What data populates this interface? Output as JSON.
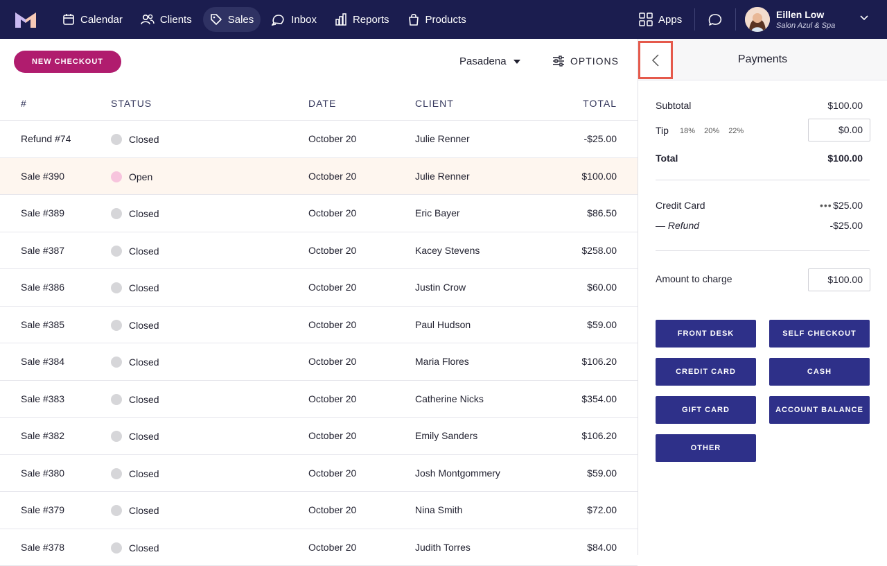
{
  "nav": {
    "items": [
      {
        "label": "Calendar",
        "icon": "calendar-icon"
      },
      {
        "label": "Clients",
        "icon": "users-icon"
      },
      {
        "label": "Sales",
        "icon": "tag-icon"
      },
      {
        "label": "Inbox",
        "icon": "inbox-icon"
      },
      {
        "label": "Reports",
        "icon": "bar-chart-icon"
      },
      {
        "label": "Products",
        "icon": "shopping-bag-icon"
      }
    ],
    "active": "Sales",
    "apps_label": "Apps",
    "user": {
      "name": "Eillen Low",
      "org": "Salon Azul & Spa"
    }
  },
  "toolbar": {
    "new_checkout": "NEW CHECKOUT",
    "location": "Pasadena",
    "options": "OPTIONS"
  },
  "table": {
    "headers": {
      "num": "#",
      "status": "STATUS",
      "date": "DATE",
      "client": "CLIENT",
      "total": "TOTAL"
    },
    "rows": [
      {
        "num": "Refund #74",
        "status": "Closed",
        "date": "October 20",
        "client": "Julie Renner",
        "total": "-$25.00"
      },
      {
        "num": "Sale #390",
        "status": "Open",
        "date": "October 20",
        "client": "Julie Renner",
        "total": "$100.00"
      },
      {
        "num": "Sale #389",
        "status": "Closed",
        "date": "October 20",
        "client": "Eric Bayer",
        "total": "$86.50"
      },
      {
        "num": "Sale #387",
        "status": "Closed",
        "date": "October 20",
        "client": "Kacey Stevens",
        "total": "$258.00"
      },
      {
        "num": "Sale #386",
        "status": "Closed",
        "date": "October 20",
        "client": "Justin Crow",
        "total": "$60.00"
      },
      {
        "num": "Sale #385",
        "status": "Closed",
        "date": "October 20",
        "client": "Paul Hudson",
        "total": "$59.00"
      },
      {
        "num": "Sale #384",
        "status": "Closed",
        "date": "October 20",
        "client": "Maria Flores",
        "total": "$106.20"
      },
      {
        "num": "Sale #383",
        "status": "Closed",
        "date": "October 20",
        "client": "Catherine Nicks",
        "total": "$354.00"
      },
      {
        "num": "Sale #382",
        "status": "Closed",
        "date": "October 20",
        "client": "Emily Sanders",
        "total": "$106.20"
      },
      {
        "num": "Sale #380",
        "status": "Closed",
        "date": "October 20",
        "client": "Josh Montgommery",
        "total": "$59.00"
      },
      {
        "num": "Sale #379",
        "status": "Closed",
        "date": "October 20",
        "client": "Nina Smith",
        "total": "$72.00"
      },
      {
        "num": "Sale #378",
        "status": "Closed",
        "date": "October 20",
        "client": "Judith Torres",
        "total": "$84.00"
      }
    ]
  },
  "payments": {
    "title": "Payments",
    "subtotal_label": "Subtotal",
    "subtotal_value": "$100.00",
    "tip_label": "Tip",
    "tip_options": [
      "18%",
      "20%",
      "22%"
    ],
    "tip_value": "$0.00",
    "total_label": "Total",
    "total_value": "$100.00",
    "credit_card_label": "Credit Card",
    "credit_card_value": "$25.00",
    "refund_label": "— Refund",
    "refund_value": "-$25.00",
    "amount_label": "Amount to charge",
    "amount_value": "$100.00",
    "buttons": [
      "FRONT DESK",
      "SELF CHECKOUT",
      "CREDIT CARD",
      "CASH",
      "GIFT CARD",
      "ACCOUNT BALANCE",
      "OTHER"
    ]
  },
  "colors": {
    "nav_bg": "#1b1d4f",
    "accent": "#b01c6e",
    "button_bg": "#2e3089",
    "highlight_row": "#fef6ef",
    "open_dot": "#f7c4dd",
    "closed_dot": "#d6d6d9",
    "focus_outline": "#e5594b"
  }
}
